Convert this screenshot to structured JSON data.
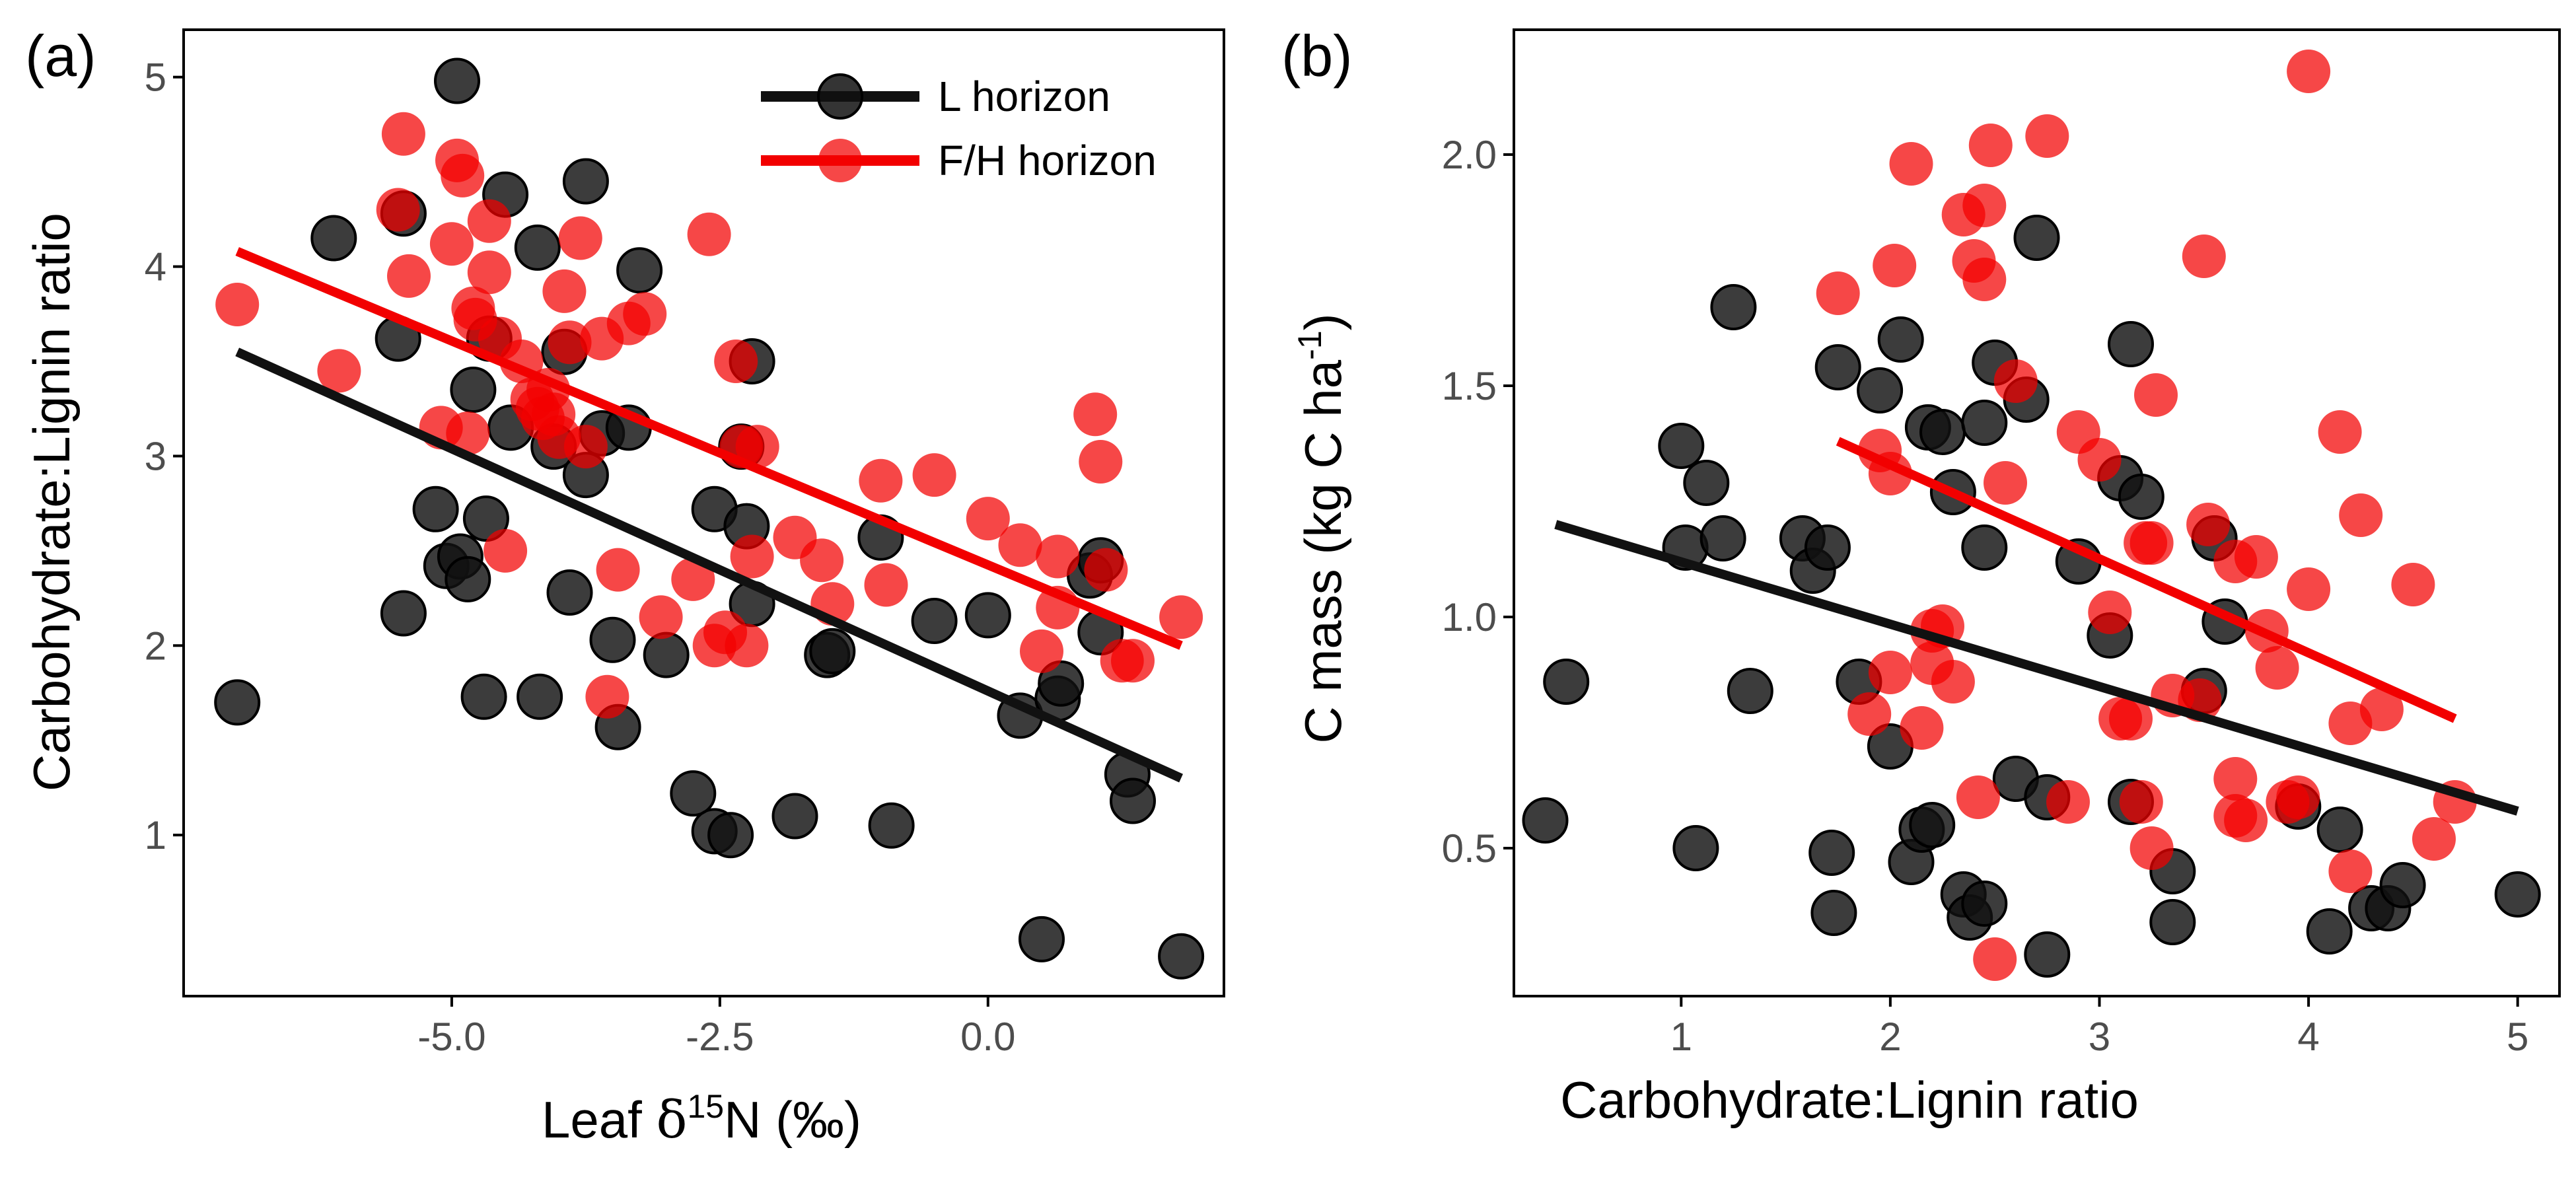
{
  "colors": {
    "l_horizon": "#111111",
    "fh_horizon": "#f20000",
    "axis": "#000000",
    "tick_text": "#4d4d4d"
  },
  "legend": {
    "placement": "top-right",
    "entries": [
      {
        "label": "L horizon",
        "series": "l"
      },
      {
        "label": "F/H horizon",
        "series": "fh"
      }
    ]
  },
  "chart_data": [
    {
      "type": "scatter",
      "panel_label": "(a)",
      "xlabel": {
        "prefix": "Leaf ",
        "symbol": "δ",
        "superscript": "15",
        "suffix": "N (‰)"
      },
      "ylabel": "Carbohydrate:Lignin ratio",
      "xlim": [
        -7.5,
        2.2
      ],
      "ylim": [
        0.15,
        5.25
      ],
      "x_ticks": [
        -5.0,
        -2.5,
        0.0
      ],
      "x_tick_labels": [
        "-5.0",
        "-2.5",
        "0.0"
      ],
      "y_ticks": [
        1,
        2,
        3,
        4,
        5
      ],
      "y_tick_labels": [
        "1",
        "2",
        "3",
        "4",
        "5"
      ],
      "grid": false,
      "series": [
        {
          "name": "L horizon",
          "key": "l",
          "points": [
            [
              -7.0,
              1.7
            ],
            [
              -6.1,
              4.15
            ],
            [
              -5.5,
              3.62
            ],
            [
              -5.45,
              4.28
            ],
            [
              -5.45,
              2.17
            ],
            [
              -5.15,
              2.72
            ],
            [
              -5.05,
              2.42
            ],
            [
              -4.95,
              4.98
            ],
            [
              -4.92,
              2.47
            ],
            [
              -4.85,
              2.35
            ],
            [
              -4.8,
              3.35
            ],
            [
              -4.7,
              1.73
            ],
            [
              -4.68,
              2.67
            ],
            [
              -4.65,
              3.62
            ],
            [
              -4.5,
              4.38
            ],
            [
              -4.45,
              3.15
            ],
            [
              -4.2,
              4.1
            ],
            [
              -4.18,
              1.73
            ],
            [
              -4.05,
              3.05
            ],
            [
              -3.95,
              3.55
            ],
            [
              -3.9,
              2.28
            ],
            [
              -3.75,
              4.45
            ],
            [
              -3.75,
              2.9
            ],
            [
              -3.6,
              3.12
            ],
            [
              -3.5,
              2.03
            ],
            [
              -3.45,
              1.57
            ],
            [
              -3.35,
              3.15
            ],
            [
              -3.25,
              3.98
            ],
            [
              -3.0,
              1.95
            ],
            [
              -2.75,
              1.22
            ],
            [
              -2.55,
              2.72
            ],
            [
              -2.55,
              1.02
            ],
            [
              -2.4,
              1.0
            ],
            [
              -2.3,
              3.05
            ],
            [
              -2.2,
              3.5
            ],
            [
              -2.25,
              2.63
            ],
            [
              -2.2,
              2.22
            ],
            [
              -1.8,
              1.1
            ],
            [
              -1.5,
              1.95
            ],
            [
              -1.45,
              1.97
            ],
            [
              -1.0,
              2.57
            ],
            [
              -0.9,
              1.05
            ],
            [
              -0.5,
              2.13
            ],
            [
              0.0,
              2.16
            ],
            [
              0.3,
              1.63
            ],
            [
              0.5,
              0.45
            ],
            [
              0.65,
              1.72
            ],
            [
              0.68,
              1.8
            ],
            [
              0.95,
              2.37
            ],
            [
              1.05,
              2.07
            ],
            [
              1.05,
              2.45
            ],
            [
              1.3,
              1.32
            ],
            [
              1.35,
              1.18
            ],
            [
              1.8,
              0.36
            ]
          ],
          "fit_line": {
            "x": [
              -7.0,
              1.8
            ],
            "y": [
              3.55,
              1.3
            ]
          }
        },
        {
          "name": "F/H horizon",
          "key": "fh",
          "points": [
            [
              -7.0,
              3.8
            ],
            [
              -6.05,
              3.45
            ],
            [
              -5.5,
              4.3
            ],
            [
              -5.45,
              4.7
            ],
            [
              -5.4,
              3.95
            ],
            [
              -5.1,
              3.15
            ],
            [
              -5.0,
              4.12
            ],
            [
              -4.95,
              4.56
            ],
            [
              -4.9,
              4.48
            ],
            [
              -4.85,
              3.12
            ],
            [
              -4.8,
              3.78
            ],
            [
              -4.78,
              3.72
            ],
            [
              -4.65,
              4.24
            ],
            [
              -4.65,
              3.97
            ],
            [
              -4.55,
              3.62
            ],
            [
              -4.5,
              2.5
            ],
            [
              -4.35,
              3.5
            ],
            [
              -4.25,
              3.3
            ],
            [
              -4.2,
              3.25
            ],
            [
              -4.15,
              3.2
            ],
            [
              -4.1,
              3.35
            ],
            [
              -4.05,
              3.22
            ],
            [
              -4.0,
              3.1
            ],
            [
              -3.95,
              3.87
            ],
            [
              -3.9,
              3.6
            ],
            [
              -3.8,
              4.15
            ],
            [
              -3.75,
              3.05
            ],
            [
              -3.6,
              3.62
            ],
            [
              -3.55,
              1.73
            ],
            [
              -3.45,
              2.4
            ],
            [
              -3.35,
              3.7
            ],
            [
              -3.2,
              3.75
            ],
            [
              -3.05,
              2.15
            ],
            [
              -2.75,
              2.35
            ],
            [
              -2.6,
              4.17
            ],
            [
              -2.55,
              2.0
            ],
            [
              -2.45,
              2.07
            ],
            [
              -2.35,
              3.5
            ],
            [
              -2.3,
              3.05
            ],
            [
              -2.25,
              2.0
            ],
            [
              -2.2,
              2.47
            ],
            [
              -2.15,
              3.05
            ],
            [
              -1.8,
              2.57
            ],
            [
              -1.55,
              2.45
            ],
            [
              -1.45,
              2.22
            ],
            [
              -1.0,
              2.87
            ],
            [
              -0.95,
              2.32
            ],
            [
              -0.5,
              2.9
            ],
            [
              0.0,
              2.67
            ],
            [
              0.3,
              2.53
            ],
            [
              0.5,
              1.97
            ],
            [
              0.65,
              2.47
            ],
            [
              0.65,
              2.2
            ],
            [
              1.0,
              3.22
            ],
            [
              1.05,
              2.97
            ],
            [
              1.1,
              2.4
            ],
            [
              1.25,
              1.92
            ],
            [
              1.35,
              1.92
            ],
            [
              1.8,
              2.15
            ]
          ],
          "fit_line": {
            "x": [
              -7.0,
              1.8
            ],
            "y": [
              4.08,
              2.0
            ]
          }
        }
      ]
    },
    {
      "type": "scatter",
      "panel_label": "(b)",
      "xlabel": "Carbohydrate:Lignin ratio",
      "ylabel": {
        "prefix": "C mass (kg C ha",
        "superscript": "-1",
        "suffix": ")"
      },
      "xlim": [
        0.2,
        5.2
      ],
      "ylim": [
        0.18,
        2.27
      ],
      "x_ticks": [
        1,
        2,
        3,
        4,
        5
      ],
      "x_tick_labels": [
        "1",
        "2",
        "3",
        "4",
        "5"
      ],
      "y_ticks": [
        0.5,
        1.0,
        1.5,
        2.0
      ],
      "y_tick_labels": [
        "0.5",
        "1.0",
        "1.5",
        "2.0"
      ],
      "grid": false,
      "series": [
        {
          "name": "L horizon",
          "key": "l",
          "points": [
            [
              0.35,
              0.56
            ],
            [
              0.45,
              0.86
            ],
            [
              1.0,
              1.37
            ],
            [
              1.02,
              1.15
            ],
            [
              1.07,
              0.5
            ],
            [
              1.12,
              1.29
            ],
            [
              1.2,
              1.17
            ],
            [
              1.25,
              1.67
            ],
            [
              1.33,
              0.84
            ],
            [
              1.58,
              1.17
            ],
            [
              1.63,
              1.1
            ],
            [
              1.7,
              1.15
            ],
            [
              1.72,
              0.49
            ],
            [
              1.73,
              0.36
            ],
            [
              1.75,
              1.54
            ],
            [
              1.85,
              0.86
            ],
            [
              1.95,
              1.49
            ],
            [
              2.0,
              0.72
            ],
            [
              2.05,
              1.6
            ],
            [
              2.1,
              0.47
            ],
            [
              2.15,
              0.54
            ],
            [
              2.2,
              0.55
            ],
            [
              2.18,
              1.41
            ],
            [
              2.25,
              1.4
            ],
            [
              2.3,
              1.27
            ],
            [
              2.35,
              0.4
            ],
            [
              2.38,
              0.35
            ],
            [
              2.45,
              0.38
            ],
            [
              2.45,
              1.42
            ],
            [
              2.45,
              1.15
            ],
            [
              2.5,
              1.55
            ],
            [
              2.6,
              0.65
            ],
            [
              2.65,
              1.47
            ],
            [
              2.7,
              1.82
            ],
            [
              2.75,
              0.61
            ],
            [
              2.75,
              0.27
            ],
            [
              2.9,
              1.12
            ],
            [
              3.05,
              0.96
            ],
            [
              3.1,
              1.3
            ],
            [
              3.15,
              1.59
            ],
            [
              3.15,
              0.6
            ],
            [
              3.2,
              1.26
            ],
            [
              3.35,
              0.45
            ],
            [
              3.35,
              0.34
            ],
            [
              3.5,
              0.84
            ],
            [
              3.55,
              1.17
            ],
            [
              3.6,
              0.99
            ],
            [
              3.95,
              0.59
            ],
            [
              4.1,
              0.32
            ],
            [
              4.15,
              0.54
            ],
            [
              4.3,
              0.37
            ],
            [
              4.38,
              0.37
            ],
            [
              4.45,
              0.42
            ],
            [
              5.0,
              0.4
            ]
          ],
          "fit_line": {
            "x": [
              0.4,
              5.0
            ],
            "y": [
              1.2,
              0.58
            ]
          }
        },
        {
          "name": "F/H horizon",
          "key": "fh",
          "points": [
            [
              1.75,
              1.7
            ],
            [
              1.9,
              0.79
            ],
            [
              1.95,
              1.36
            ],
            [
              2.0,
              1.31
            ],
            [
              2.0,
              0.88
            ],
            [
              2.02,
              1.76
            ],
            [
              2.1,
              1.98
            ],
            [
              2.15,
              0.76
            ],
            [
              2.2,
              0.97
            ],
            [
              2.2,
              0.9
            ],
            [
              2.25,
              0.98
            ],
            [
              2.3,
              0.86
            ],
            [
              2.35,
              1.87
            ],
            [
              2.4,
              1.77
            ],
            [
              2.42,
              0.61
            ],
            [
              2.45,
              1.89
            ],
            [
              2.45,
              1.73
            ],
            [
              2.48,
              2.02
            ],
            [
              2.5,
              0.26
            ],
            [
              2.55,
              1.29
            ],
            [
              2.6,
              1.51
            ],
            [
              2.75,
              2.04
            ],
            [
              2.85,
              0.6
            ],
            [
              2.9,
              1.4
            ],
            [
              3.0,
              1.34
            ],
            [
              3.05,
              1.01
            ],
            [
              3.1,
              0.78
            ],
            [
              3.15,
              0.78
            ],
            [
              3.2,
              0.6
            ],
            [
              3.22,
              1.16
            ],
            [
              3.25,
              1.16
            ],
            [
              3.25,
              0.5
            ],
            [
              3.27,
              1.48
            ],
            [
              3.35,
              0.83
            ],
            [
              3.48,
              0.82
            ],
            [
              3.5,
              1.78
            ],
            [
              3.52,
              1.2
            ],
            [
              3.65,
              0.65
            ],
            [
              3.65,
              0.57
            ],
            [
              3.65,
              1.12
            ],
            [
              3.7,
              0.56
            ],
            [
              3.75,
              1.13
            ],
            [
              3.8,
              0.97
            ],
            [
              3.85,
              0.89
            ],
            [
              3.9,
              0.6
            ],
            [
              3.95,
              0.61
            ],
            [
              4.0,
              1.06
            ],
            [
              4.0,
              2.18
            ],
            [
              4.15,
              1.4
            ],
            [
              4.2,
              0.77
            ],
            [
              4.2,
              0.45
            ],
            [
              4.25,
              1.22
            ],
            [
              4.35,
              0.8
            ],
            [
              4.5,
              1.07
            ],
            [
              4.6,
              0.52
            ],
            [
              4.7,
              0.6
            ]
          ],
          "fit_line": {
            "x": [
              1.75,
              4.7
            ],
            "y": [
              1.38,
              0.78
            ]
          }
        }
      ]
    }
  ]
}
